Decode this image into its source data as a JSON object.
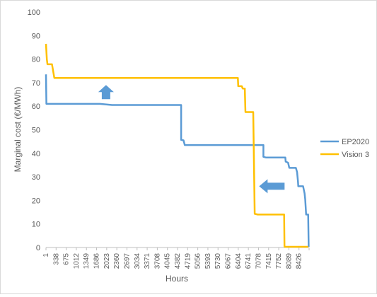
{
  "chart_data": {
    "type": "line",
    "xlabel": "Hours",
    "ylabel": "Marginal cost (€/MWh)",
    "x_tick_labels": [
      "1",
      "338",
      "675",
      "1012",
      "1349",
      "1686",
      "2023",
      "2360",
      "2697",
      "3034",
      "3371",
      "3708",
      "4045",
      "4382",
      "4719",
      "5056",
      "5393",
      "5730",
      "6067",
      "6404",
      "6741",
      "7078",
      "7415",
      "7752",
      "8089",
      "8426"
    ],
    "xlim": [
      1,
      8760
    ],
    "ylim": [
      0,
      100
    ],
    "y_ticks": [
      0,
      10,
      20,
      30,
      40,
      50,
      60,
      70,
      80,
      90,
      100
    ],
    "grid": false,
    "legend_position": "right",
    "series": [
      {
        "name": "EP2020",
        "color": "#5b9bd5",
        "points": [
          [
            1,
            73.5
          ],
          [
            15,
            61
          ],
          [
            1800,
            61
          ],
          [
            2200,
            60.5
          ],
          [
            4500,
            60.5
          ],
          [
            4500,
            45.7
          ],
          [
            4580,
            45.5
          ],
          [
            4620,
            43.5
          ],
          [
            7240,
            43.5
          ],
          [
            7240,
            38.5
          ],
          [
            7330,
            38.2
          ],
          [
            7970,
            38.2
          ],
          [
            7980,
            36.5
          ],
          [
            8060,
            36
          ],
          [
            8100,
            33.8
          ],
          [
            8320,
            33.8
          ],
          [
            8360,
            32
          ],
          [
            8390,
            28
          ],
          [
            8400,
            26
          ],
          [
            8560,
            26
          ],
          [
            8610,
            23
          ],
          [
            8630,
            20.5
          ],
          [
            8660,
            14
          ],
          [
            8730,
            14
          ],
          [
            8745,
            0.3
          ]
        ]
      },
      {
        "name": "Vision 3",
        "color": "#ffc000",
        "points": [
          [
            1,
            86.5
          ],
          [
            30,
            80
          ],
          [
            50,
            77.8
          ],
          [
            200,
            77.8
          ],
          [
            280,
            72
          ],
          [
            6390,
            72
          ],
          [
            6400,
            68.5
          ],
          [
            6520,
            68.5
          ],
          [
            6550,
            67.5
          ],
          [
            6620,
            67.5
          ],
          [
            6640,
            57.5
          ],
          [
            6900,
            57.5
          ],
          [
            6950,
            14.3
          ],
          [
            7050,
            14
          ],
          [
            7930,
            14
          ],
          [
            7940,
            0.3
          ],
          [
            8730,
            0.3
          ]
        ]
      }
    ],
    "annotations": [
      {
        "type": "arrow",
        "direction": "up",
        "x": 2000,
        "y": 66,
        "color": "#5b9bd5"
      },
      {
        "type": "arrow",
        "direction": "left",
        "x": 7520,
        "y": 26,
        "color": "#5b9bd5"
      }
    ]
  }
}
